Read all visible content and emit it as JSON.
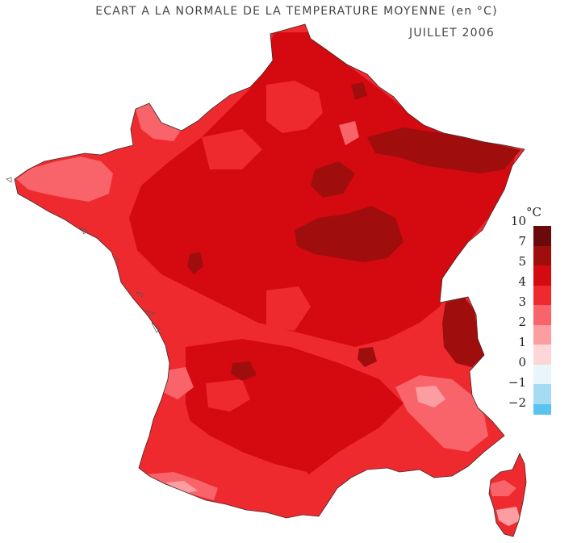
{
  "title": "ECART A LA NORMALE DE LA TEMPERATURE MOYENNE (en °C)",
  "subtitle": "JUILLET 2006",
  "legend": {
    "unit": "°C",
    "ticks": [
      "10",
      "7",
      "5",
      "4",
      "3",
      "2",
      "1",
      "0",
      "−1",
      "−2"
    ],
    "classes": [
      {
        "range": "7 to 10",
        "color": "#6b0a0a"
      },
      {
        "range": "5 to 7",
        "color": "#a00d0d"
      },
      {
        "range": "4 to 5",
        "color": "#d40a10"
      },
      {
        "range": "3 to 4",
        "color": "#ef2a2f"
      },
      {
        "range": "2 to 3",
        "color": "#f8646a"
      },
      {
        "range": "1 to 2",
        "color": "#fb9da1"
      },
      {
        "range": "0 to 1",
        "color": "#fdd6d8"
      },
      {
        "range": "-1 to 0",
        "color": "#e9f5fb"
      },
      {
        "range": "-2 to -1",
        "color": "#a6dcf3"
      },
      {
        "range": "below -2",
        "color": "#5ac3ee"
      }
    ]
  },
  "regions": {
    "mainland_dominant": "3 to 4",
    "northeast_max": "5 to 7",
    "alps_max": "5 to 7",
    "southeast_min": "1 to 2",
    "corsica_min": "1 to 2"
  }
}
